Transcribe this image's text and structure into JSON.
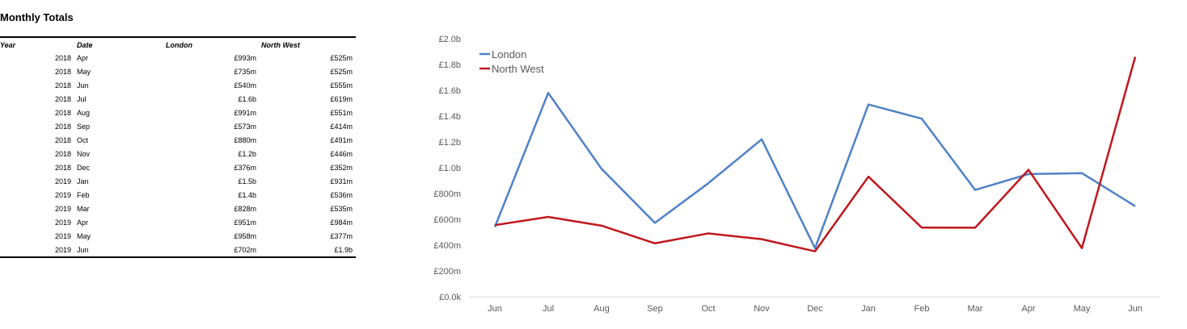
{
  "table": {
    "title": "Monthly Totals",
    "headers": [
      "Year",
      "Date",
      "London",
      "North West"
    ],
    "rows": [
      {
        "year": "2018",
        "month": "Apr",
        "london": "£993m",
        "north_west": "£525m"
      },
      {
        "year": "2018",
        "month": "May",
        "london": "£735m",
        "north_west": "£525m"
      },
      {
        "year": "2018",
        "month": "Jun",
        "london": "£540m",
        "north_west": "£555m"
      },
      {
        "year": "2018",
        "month": "Jul",
        "london": "£1.6b",
        "north_west": "£619m"
      },
      {
        "year": "2018",
        "month": "Aug",
        "london": "£991m",
        "north_west": "£551m"
      },
      {
        "year": "2018",
        "month": "Sep",
        "london": "£573m",
        "north_west": "£414m"
      },
      {
        "year": "2018",
        "month": "Oct",
        "london": "£880m",
        "north_west": "£491m"
      },
      {
        "year": "2018",
        "month": "Nov",
        "london": "£1.2b",
        "north_west": "£446m"
      },
      {
        "year": "2018",
        "month": "Dec",
        "london": "£376m",
        "north_west": "£352m"
      },
      {
        "year": "2019",
        "month": "Jan",
        "london": "£1.5b",
        "north_west": "£931m"
      },
      {
        "year": "2019",
        "month": "Feb",
        "london": "£1.4b",
        "north_west": "£536m"
      },
      {
        "year": "2019",
        "month": "Mar",
        "london": "£828m",
        "north_west": "£535m"
      },
      {
        "year": "2019",
        "month": "Apr",
        "london": "£951m",
        "north_west": "£984m"
      },
      {
        "year": "2019",
        "month": "May",
        "london": "£958m",
        "north_west": "£377m"
      },
      {
        "year": "2019",
        "month": "Jun",
        "london": "£702m",
        "north_west": "£1.9b"
      }
    ]
  },
  "chart_data": {
    "type": "line",
    "categories": [
      "Jun",
      "Jul",
      "Aug",
      "Sep",
      "Oct",
      "Nov",
      "Dec",
      "Jan",
      "Feb",
      "Mar",
      "Apr",
      "May",
      "Jun"
    ],
    "series": [
      {
        "name": "London",
        "color": "#4F81C7",
        "values": [
          540,
          1580,
          991,
          573,
          880,
          1220,
          376,
          1490,
          1380,
          828,
          951,
          958,
          702
        ]
      },
      {
        "name": "North West",
        "color": "#C0171D",
        "values": [
          555,
          619,
          551,
          414,
          491,
          446,
          352,
          931,
          536,
          535,
          984,
          377,
          1860
        ]
      }
    ],
    "ylim": [
      0,
      2000
    ],
    "yticks": [
      0,
      200,
      400,
      600,
      800,
      1000,
      1200,
      1400,
      1600,
      1800,
      2000
    ],
    "ytick_labels": [
      "£0.0k",
      "£200m",
      "£400m",
      "£600m",
      "£800m",
      "£1.0b",
      "£1.2b",
      "£1.4b",
      "£1.6b",
      "£1.8b",
      "£2.0b"
    ],
    "grid": false,
    "legend": "top-left",
    "xlabel": "",
    "ylabel": ""
  }
}
